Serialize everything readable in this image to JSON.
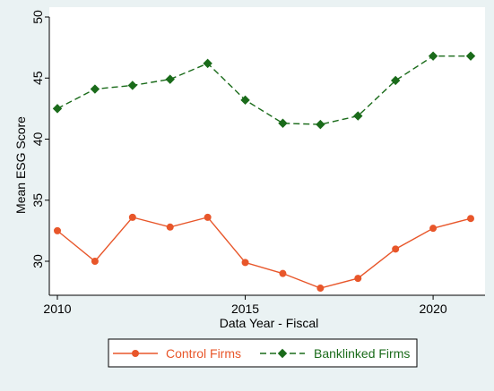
{
  "chart_data": {
    "type": "line",
    "xlabel": "Data Year - Fiscal",
    "ylabel": "Mean ESG Score",
    "xlim": [
      2010,
      2021
    ],
    "ylim": [
      27,
      50
    ],
    "x_ticks": [
      2010,
      2015,
      2020
    ],
    "y_ticks": [
      30,
      35,
      40,
      45,
      50
    ],
    "grid": false,
    "legend_position": "bottom",
    "x": [
      2010,
      2011,
      2012,
      2013,
      2014,
      2015,
      2016,
      2017,
      2018,
      2019,
      2020,
      2021
    ],
    "series": [
      {
        "name": "Control Firms",
        "color": "#e8562a",
        "line_style": "solid",
        "marker": "circle",
        "values": [
          32.5,
          30.0,
          33.6,
          32.8,
          33.6,
          29.9,
          29.0,
          27.8,
          28.6,
          31.0,
          32.7,
          33.5
        ]
      },
      {
        "name": "Banklinked Firms",
        "color": "#1a6b1a",
        "line_style": "dashed",
        "marker": "diamond",
        "values": [
          42.5,
          44.1,
          44.4,
          44.9,
          46.2,
          43.2,
          41.3,
          41.2,
          41.9,
          44.8,
          46.8,
          46.8
        ]
      }
    ]
  }
}
